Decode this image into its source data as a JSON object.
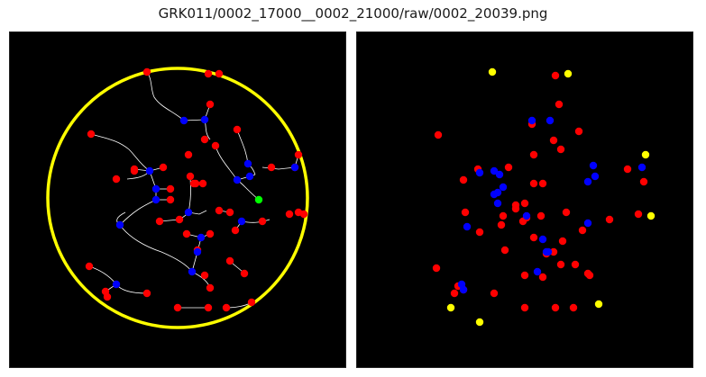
{
  "title": "GRK011/0002_17000__0002_21000/raw/0002_20039.png",
  "colors": {
    "background": "#000000",
    "red_marker": "#ff0000",
    "blue_marker": "#0000ff",
    "yellow_marker": "#ffff00",
    "green_marker": "#00ff00",
    "boundary_circle": "#ffff00",
    "trace_line": "#ffffff"
  },
  "panels": [
    {
      "name": "left-panel",
      "content": "traced image with circular boundary"
    },
    {
      "name": "right-panel",
      "content": "point markers only"
    }
  ]
}
